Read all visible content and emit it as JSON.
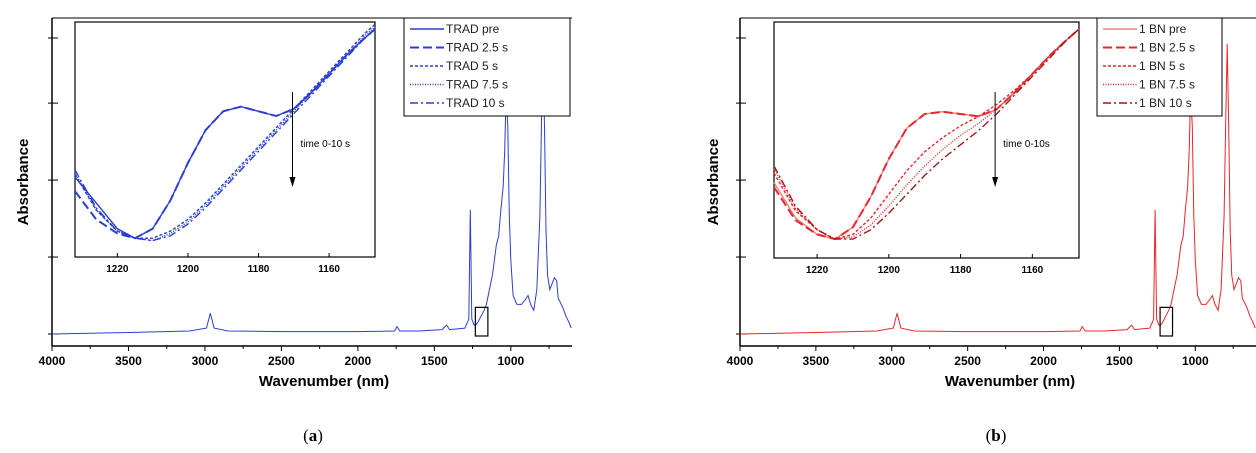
{
  "chart_data": [
    {
      "type": "line",
      "caption_letter": "a",
      "xlabel": "Wavenumber (nm)",
      "ylabel": "Absorbance",
      "xlim": [
        4000,
        600
      ],
      "xticks": [
        4000,
        3500,
        3000,
        2500,
        2000,
        1500,
        1000
      ],
      "x_reversed": true,
      "legend": "top-right",
      "annotation": "time 0-10 s",
      "line_color": "#2a3fd1",
      "main_series": {
        "x": [
          4000,
          3500,
          3100,
          2990,
          2965,
          2940,
          2850,
          2500,
          2000,
          1760,
          1745,
          1725,
          1600,
          1450,
          1420,
          1400,
          1300,
          1275,
          1265,
          1255,
          1240,
          1230,
          1215,
          1195,
          1175,
          1160,
          1120,
          1095,
          1080,
          1065,
          1050,
          1040,
          1030,
          1020,
          1010,
          1000,
          985,
          960,
          930,
          900,
          888,
          870,
          850,
          830,
          810,
          800,
          790,
          780,
          770,
          760,
          745,
          730,
          715,
          700,
          690,
          680,
          660,
          640,
          620,
          605
        ],
        "y": [
          0.0,
          0.005,
          0.01,
          0.02,
          0.07,
          0.02,
          0.01,
          0.008,
          0.008,
          0.01,
          0.025,
          0.01,
          0.01,
          0.015,
          0.03,
          0.015,
          0.02,
          0.05,
          0.42,
          0.05,
          0.03,
          0.03,
          0.04,
          0.06,
          0.08,
          0.1,
          0.2,
          0.3,
          0.33,
          0.42,
          0.5,
          0.62,
          0.82,
          0.7,
          0.4,
          0.25,
          0.13,
          0.1,
          0.1,
          0.12,
          0.13,
          0.1,
          0.08,
          0.15,
          0.4,
          0.7,
          0.98,
          0.7,
          0.35,
          0.2,
          0.15,
          0.17,
          0.19,
          0.18,
          0.12,
          0.11,
          0.09,
          0.06,
          0.04,
          0.02
        ]
      },
      "inset": {
        "xlim": [
          1232,
          1147
        ],
        "xticks": [
          1220,
          1200,
          1180,
          1160
        ],
        "series": [
          {
            "name": "TRAD pre",
            "style": "solid",
            "x": [
              1232,
              1226,
              1220,
              1215,
              1210,
              1205,
              1200,
              1195,
              1190,
              1185,
              1180,
              1175,
              1170,
              1165,
              1160,
              1155,
              1150,
              1147
            ],
            "y": [
              0.34,
              0.23,
              0.12,
              0.08,
              0.12,
              0.24,
              0.4,
              0.54,
              0.62,
              0.64,
              0.62,
              0.6,
              0.63,
              0.7,
              0.78,
              0.86,
              0.93,
              0.97
            ]
          },
          {
            "name": "TRAD 2.5 s",
            "style": "dash",
            "x": [
              1232,
              1226,
              1220,
              1215,
              1210,
              1205,
              1200,
              1195,
              1190,
              1185,
              1180,
              1175,
              1170,
              1165,
              1160,
              1155,
              1150,
              1147
            ],
            "y": [
              0.28,
              0.16,
              0.1,
              0.08,
              0.12,
              0.24,
              0.4,
              0.54,
              0.62,
              0.64,
              0.62,
              0.6,
              0.63,
              0.7,
              0.78,
              0.86,
              0.93,
              0.97
            ]
          },
          {
            "name": "TRAD 5 s",
            "style": "dot",
            "x": [
              1232,
              1226,
              1220,
              1215,
              1210,
              1205,
              1200,
              1195,
              1190,
              1185,
              1180,
              1175,
              1170,
              1165,
              1160,
              1155,
              1150,
              1147
            ],
            "y": [
              0.35,
              0.2,
              0.11,
              0.08,
              0.08,
              0.11,
              0.16,
              0.23,
              0.31,
              0.39,
              0.47,
              0.55,
              0.63,
              0.71,
              0.79,
              0.87,
              0.95,
              0.99
            ]
          },
          {
            "name": "TRAD 7.5 s",
            "style": "fine",
            "x": [
              1232,
              1226,
              1220,
              1215,
              1210,
              1205,
              1200,
              1195,
              1190,
              1185,
              1180,
              1175,
              1170,
              1165,
              1160,
              1155,
              1150,
              1147
            ],
            "y": [
              0.36,
              0.2,
              0.11,
              0.08,
              0.07,
              0.1,
              0.15,
              0.22,
              0.3,
              0.38,
              0.46,
              0.54,
              0.62,
              0.7,
              0.78,
              0.86,
              0.94,
              0.98
            ]
          },
          {
            "name": "TRAD 10 s",
            "style": "dashdot",
            "x": [
              1232,
              1226,
              1220,
              1215,
              1210,
              1205,
              1200,
              1195,
              1190,
              1185,
              1180,
              1175,
              1170,
              1165,
              1160,
              1155,
              1150,
              1147
            ],
            "y": [
              0.37,
              0.21,
              0.11,
              0.08,
              0.07,
              0.09,
              0.14,
              0.21,
              0.29,
              0.37,
              0.45,
              0.53,
              0.61,
              0.69,
              0.77,
              0.85,
              0.93,
              0.97
            ]
          }
        ]
      }
    },
    {
      "type": "line",
      "caption_letter": "b",
      "xlabel": "Wavenumber (nm)",
      "ylabel": "Absorbance",
      "xlim": [
        4000,
        600
      ],
      "xticks": [
        4000,
        3500,
        3000,
        2500,
        2000,
        1500,
        1000
      ],
      "x_reversed": true,
      "legend": "top-right",
      "annotation": "time 0-10s",
      "line_color": "#e8262b",
      "main_series": {
        "x": [
          4000,
          3500,
          3100,
          2990,
          2965,
          2940,
          2850,
          2500,
          2000,
          1760,
          1745,
          1725,
          1600,
          1450,
          1420,
          1400,
          1300,
          1275,
          1265,
          1255,
          1240,
          1230,
          1215,
          1195,
          1175,
          1160,
          1120,
          1095,
          1080,
          1065,
          1050,
          1040,
          1030,
          1020,
          1010,
          1000,
          985,
          960,
          930,
          900,
          888,
          870,
          850,
          830,
          810,
          800,
          790,
          780,
          770,
          760,
          745,
          730,
          715,
          700,
          690,
          680,
          660,
          640,
          620,
          605
        ],
        "y": [
          0.0,
          0.005,
          0.01,
          0.02,
          0.07,
          0.02,
          0.01,
          0.008,
          0.008,
          0.01,
          0.025,
          0.01,
          0.01,
          0.015,
          0.03,
          0.015,
          0.02,
          0.05,
          0.42,
          0.05,
          0.03,
          0.03,
          0.04,
          0.06,
          0.08,
          0.1,
          0.2,
          0.3,
          0.33,
          0.42,
          0.5,
          0.62,
          0.82,
          0.7,
          0.4,
          0.25,
          0.13,
          0.1,
          0.1,
          0.12,
          0.13,
          0.1,
          0.08,
          0.15,
          0.4,
          0.7,
          0.98,
          0.7,
          0.35,
          0.2,
          0.15,
          0.17,
          0.19,
          0.18,
          0.12,
          0.11,
          0.09,
          0.06,
          0.04,
          0.02
        ]
      },
      "inset": {
        "xlim": [
          1232,
          1147
        ],
        "xticks": [
          1220,
          1200,
          1180,
          1160
        ],
        "series": [
          {
            "name": "1 BN pre",
            "style": "solid",
            "color": "#f08080",
            "x": [
              1232,
              1226,
              1220,
              1215,
              1210,
              1205,
              1200,
              1195,
              1190,
              1185,
              1180,
              1175,
              1170,
              1165,
              1160,
              1155,
              1150,
              1147
            ],
            "y": [
              0.32,
              0.17,
              0.1,
              0.08,
              0.13,
              0.26,
              0.42,
              0.55,
              0.61,
              0.62,
              0.61,
              0.6,
              0.63,
              0.7,
              0.78,
              0.86,
              0.93,
              0.97
            ]
          },
          {
            "name": "1 BN 2.5 s",
            "style": "dash",
            "color": "#e8262b",
            "x": [
              1232,
              1226,
              1220,
              1215,
              1210,
              1205,
              1200,
              1195,
              1190,
              1185,
              1180,
              1175,
              1170,
              1165,
              1160,
              1155,
              1150,
              1147
            ],
            "y": [
              0.3,
              0.16,
              0.1,
              0.08,
              0.13,
              0.26,
              0.42,
              0.55,
              0.61,
              0.62,
              0.61,
              0.6,
              0.63,
              0.7,
              0.78,
              0.86,
              0.93,
              0.97
            ]
          },
          {
            "name": "1 BN 5 s",
            "style": "dot",
            "color": "#e8262b",
            "x": [
              1232,
              1226,
              1220,
              1215,
              1210,
              1205,
              1200,
              1195,
              1190,
              1185,
              1180,
              1175,
              1170,
              1165,
              1160,
              1155,
              1150,
              1147
            ],
            "y": [
              0.36,
              0.2,
              0.12,
              0.08,
              0.1,
              0.17,
              0.27,
              0.37,
              0.45,
              0.51,
              0.56,
              0.6,
              0.65,
              0.71,
              0.78,
              0.86,
              0.93,
              0.97
            ]
          },
          {
            "name": "1 BN 7.5 s",
            "style": "fine",
            "color": "#e8262b",
            "x": [
              1232,
              1226,
              1220,
              1215,
              1210,
              1205,
              1200,
              1195,
              1190,
              1185,
              1180,
              1175,
              1170,
              1165,
              1160,
              1155,
              1150,
              1147
            ],
            "y": [
              0.38,
              0.21,
              0.12,
              0.08,
              0.09,
              0.14,
              0.22,
              0.31,
              0.39,
              0.46,
              0.52,
              0.57,
              0.63,
              0.7,
              0.78,
              0.86,
              0.93,
              0.97
            ]
          },
          {
            "name": "1 BN 10 s",
            "style": "dashdot",
            "color": "#9b1b1b",
            "x": [
              1232,
              1226,
              1220,
              1215,
              1210,
              1205,
              1200,
              1195,
              1190,
              1185,
              1180,
              1175,
              1170,
              1165,
              1160,
              1155,
              1150,
              1147
            ],
            "y": [
              0.39,
              0.22,
              0.12,
              0.08,
              0.08,
              0.12,
              0.19,
              0.27,
              0.35,
              0.42,
              0.48,
              0.54,
              0.61,
              0.69,
              0.77,
              0.85,
              0.93,
              0.97
            ]
          }
        ]
      }
    }
  ]
}
